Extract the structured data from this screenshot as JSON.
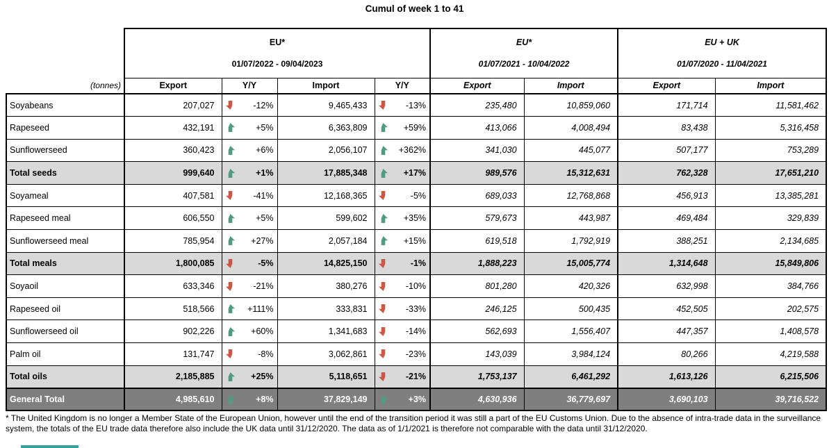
{
  "title": "Cumul of week 1 to 41",
  "unit_label": "(tonnes)",
  "colors": {
    "up": "#4E9C82",
    "down": "#CE5643",
    "subtotal_bg": "#D9D9D9",
    "grandtotal_bg": "#7F7F7F",
    "strip": "#35A2A0"
  },
  "groups": [
    {
      "name": "EU*",
      "period": "01/07/2022 - 09/04/2023",
      "columns": [
        "Export",
        "Y/Y",
        "Import",
        "Y/Y"
      ]
    },
    {
      "name": "EU*",
      "period": "01/07/2021 - 10/04/2022",
      "columns": [
        "Export",
        "Import"
      ]
    },
    {
      "name": "EU + UK",
      "period": "01/07/2020 - 11/04/2021",
      "columns": [
        "Export",
        "Import"
      ]
    }
  ],
  "rows": [
    {
      "label": "Soyabeans",
      "type": "data",
      "cur_export": "207,027",
      "cur_export_dir": "down",
      "cur_export_pct": "-12%",
      "cur_import": "9,465,433",
      "cur_import_dir": "down",
      "cur_import_pct": "-13%",
      "prev_export": "235,480",
      "prev_import": "10,859,060",
      "prev2_export": "171,714",
      "prev2_import": "11,581,462"
    },
    {
      "label": "Rapeseed",
      "type": "data",
      "cur_export": "432,191",
      "cur_export_dir": "up",
      "cur_export_pct": "+5%",
      "cur_import": "6,363,809",
      "cur_import_dir": "up",
      "cur_import_pct": "+59%",
      "prev_export": "413,066",
      "prev_import": "4,008,494",
      "prev2_export": "83,438",
      "prev2_import": "5,316,458"
    },
    {
      "label": "Sunflowerseed",
      "type": "data",
      "cur_export": "360,423",
      "cur_export_dir": "up",
      "cur_export_pct": "+6%",
      "cur_import": "2,056,107",
      "cur_import_dir": "up",
      "cur_import_pct": "+362%",
      "prev_export": "341,030",
      "prev_import": "445,077",
      "prev2_export": "507,177",
      "prev2_import": "753,289"
    },
    {
      "label": "Total seeds",
      "type": "subtotal",
      "cur_export": "999,640",
      "cur_export_dir": "up",
      "cur_export_pct": "+1%",
      "cur_import": "17,885,348",
      "cur_import_dir": "up",
      "cur_import_pct": "+17%",
      "prev_export": "989,576",
      "prev_import": "15,312,631",
      "prev2_export": "762,328",
      "prev2_import": "17,651,210"
    },
    {
      "label": "Soyameal",
      "type": "data",
      "cur_export": "407,581",
      "cur_export_dir": "down",
      "cur_export_pct": "-41%",
      "cur_import": "12,168,365",
      "cur_import_dir": "down",
      "cur_import_pct": "-5%",
      "prev_export": "689,033",
      "prev_import": "12,768,868",
      "prev2_export": "456,913",
      "prev2_import": "13,385,281"
    },
    {
      "label": "Rapeseed meal",
      "type": "data",
      "cur_export": "606,550",
      "cur_export_dir": "up",
      "cur_export_pct": "+5%",
      "cur_import": "599,602",
      "cur_import_dir": "up",
      "cur_import_pct": "+35%",
      "prev_export": "579,673",
      "prev_import": "443,987",
      "prev2_export": "469,484",
      "prev2_import": "329,839"
    },
    {
      "label": "Sunflowerseed meal",
      "type": "data",
      "cur_export": "785,954",
      "cur_export_dir": "up",
      "cur_export_pct": "+27%",
      "cur_import": "2,057,184",
      "cur_import_dir": "up",
      "cur_import_pct": "+15%",
      "prev_export": "619,518",
      "prev_import": "1,792,919",
      "prev2_export": "388,251",
      "prev2_import": "2,134,685"
    },
    {
      "label": "Total meals",
      "type": "subtotal",
      "cur_export": "1,800,085",
      "cur_export_dir": "down",
      "cur_export_pct": "-5%",
      "cur_import": "14,825,150",
      "cur_import_dir": "down",
      "cur_import_pct": "-1%",
      "prev_export": "1,888,223",
      "prev_import": "15,005,774",
      "prev2_export": "1,314,648",
      "prev2_import": "15,849,806"
    },
    {
      "label": "Soyaoil",
      "type": "data",
      "cur_export": "633,346",
      "cur_export_dir": "down",
      "cur_export_pct": "-21%",
      "cur_import": "380,276",
      "cur_import_dir": "down",
      "cur_import_pct": "-10%",
      "prev_export": "801,280",
      "prev_import": "420,326",
      "prev2_export": "632,998",
      "prev2_import": "384,766"
    },
    {
      "label": "Rapeseed oil",
      "type": "data",
      "cur_export": "518,566",
      "cur_export_dir": "up",
      "cur_export_pct": "+111%",
      "cur_import": "333,831",
      "cur_import_dir": "down",
      "cur_import_pct": "-33%",
      "prev_export": "246,125",
      "prev_import": "500,435",
      "prev2_export": "452,505",
      "prev2_import": "202,575"
    },
    {
      "label": "Sunflowerseed oil",
      "type": "data",
      "cur_export": "902,226",
      "cur_export_dir": "up",
      "cur_export_pct": "+60%",
      "cur_import": "1,341,683",
      "cur_import_dir": "down",
      "cur_import_pct": "-14%",
      "prev_export": "562,693",
      "prev_import": "1,556,407",
      "prev2_export": "447,357",
      "prev2_import": "1,408,578"
    },
    {
      "label": "Palm oil",
      "type": "data",
      "cur_export": "131,747",
      "cur_export_dir": "down",
      "cur_export_pct": "-8%",
      "cur_import": "3,062,861",
      "cur_import_dir": "down",
      "cur_import_pct": "-23%",
      "prev_export": "143,039",
      "prev_import": "3,984,124",
      "prev2_export": "80,266",
      "prev2_import": "4,219,588"
    },
    {
      "label": "Total oils",
      "type": "subtotal",
      "cur_export": "2,185,885",
      "cur_export_dir": "up",
      "cur_export_pct": "+25%",
      "cur_import": "5,118,651",
      "cur_import_dir": "down",
      "cur_import_pct": "-21%",
      "prev_export": "1,753,137",
      "prev_import": "6,461,292",
      "prev2_export": "1,613,126",
      "prev2_import": "6,215,506"
    },
    {
      "label": "General Total",
      "type": "grandtotal",
      "cur_export": "4,985,610",
      "cur_export_dir": "up",
      "cur_export_pct": "+8%",
      "cur_import": "37,829,149",
      "cur_import_dir": "up",
      "cur_import_pct": "+3%",
      "prev_export": "4,630,936",
      "prev_import": "36,779,697",
      "prev2_export": "3,690,103",
      "prev2_import": "39,716,522"
    }
  ],
  "footnote": "* The United Kingdom is no longer a Member State of the European Union, however until the end of the transition period it was still a part of the EU Customs Union. Due to the absence of intra-trade data in the surveillance system, the totals of the EU trade data  therefore also include the UK data until 31/12/2020. The data as of 1/1/2021 is therefore not comparable with the data until 31/12/2020."
}
